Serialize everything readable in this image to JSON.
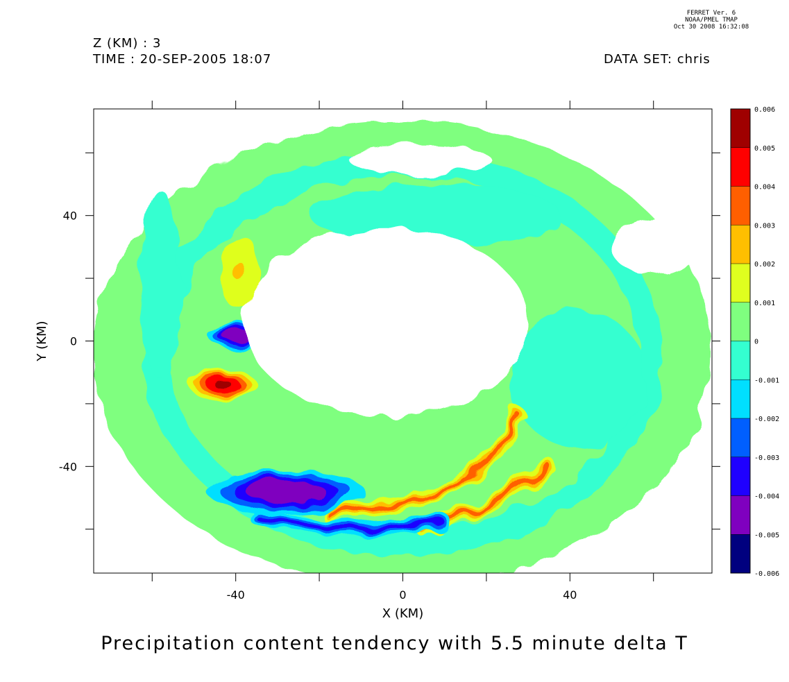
{
  "header": {
    "z_label": "Z (KM) : 3",
    "time_label": "TIME : 20-SEP-2005 18:07",
    "dataset_label": "DATA SET: chris",
    "stamp_line1": "FERRET Ver. 6",
    "stamp_line2": "NOAA/PMEL TMAP",
    "stamp_line3": "Oct 30 2008 16:32:08"
  },
  "chart_data": {
    "type": "heatmap",
    "title": "Precipitation content tendency with 5.5 minute delta T",
    "xlabel": "X (KM)",
    "ylabel": "Y (KM)",
    "xlim": [
      -74,
      74
    ],
    "ylim": [
      -74,
      74
    ],
    "x_tick_labels": [
      "-40",
      "0",
      "40"
    ],
    "x_tick_values": [
      -40,
      0,
      40
    ],
    "x_minor_ticks": [
      -60,
      -40,
      -20,
      0,
      20,
      40,
      60
    ],
    "y_tick_labels": [
      "-40",
      "0",
      "40"
    ],
    "y_tick_values": [
      -40,
      0,
      40
    ],
    "y_minor_ticks": [
      -60,
      -40,
      -20,
      0,
      20,
      40,
      60
    ],
    "colorbar": {
      "levels": [
        -0.006,
        -0.005,
        -0.004,
        -0.003,
        -0.002,
        -0.001,
        0,
        0.001,
        0.002,
        0.003,
        0.004,
        0.005,
        0.006
      ],
      "level_labels": [
        "-0.006",
        "-0.005",
        "-0.004",
        "-0.003",
        "-0.002",
        "-0.001",
        "0",
        "0.001",
        "0.002",
        "0.003",
        "0.004",
        "0.005",
        "0.006"
      ],
      "colors": [
        "#00007f",
        "#7f00bf",
        "#1f00ff",
        "#005fff",
        "#00dfff",
        "#34ffd0",
        "#7fff7f",
        "#dfff1f",
        "#ffbf00",
        "#ff5f00",
        "#ff0000",
        "#9f0000"
      ]
    },
    "features": [
      {
        "kind": "domain",
        "center": [
          0,
          -4
        ],
        "radius": 74
      },
      {
        "kind": "hole",
        "center": [
          -4,
          6
        ],
        "rx": 34,
        "ry": 30
      },
      {
        "kind": "band",
        "label": "red arc",
        "points": [
          [
            -18,
            -55
          ],
          [
            0,
            -52
          ],
          [
            12,
            -46
          ],
          [
            22,
            -36
          ],
          [
            28,
            -24
          ]
        ],
        "value": 0.003
      },
      {
        "kind": "band",
        "label": "lower red arc",
        "points": [
          [
            5,
            -60
          ],
          [
            18,
            -54
          ],
          [
            28,
            -46
          ],
          [
            35,
            -40
          ]
        ],
        "value": 0.003
      },
      {
        "kind": "band",
        "label": "blue arc",
        "points": [
          [
            -35,
            -56
          ],
          [
            -15,
            -60
          ],
          [
            0,
            -59
          ],
          [
            10,
            -58
          ]
        ],
        "value": -0.004
      },
      {
        "kind": "blob",
        "label": "purple patch",
        "center": [
          -28,
          -48
        ],
        "rx": 14,
        "ry": 5,
        "value": -0.005
      },
      {
        "kind": "blob",
        "label": "west red core",
        "center": [
          -43,
          -14
        ],
        "rx": 6,
        "ry": 3.5,
        "value": 0.005
      },
      {
        "kind": "blob",
        "label": "west blue core",
        "center": [
          -40,
          2
        ],
        "rx": 5,
        "ry": 3,
        "value": -0.005
      },
      {
        "kind": "blob",
        "label": "north yellow",
        "center": [
          -39,
          22
        ],
        "rx": 3.5,
        "ry": 9,
        "value": 0.002
      }
    ]
  }
}
